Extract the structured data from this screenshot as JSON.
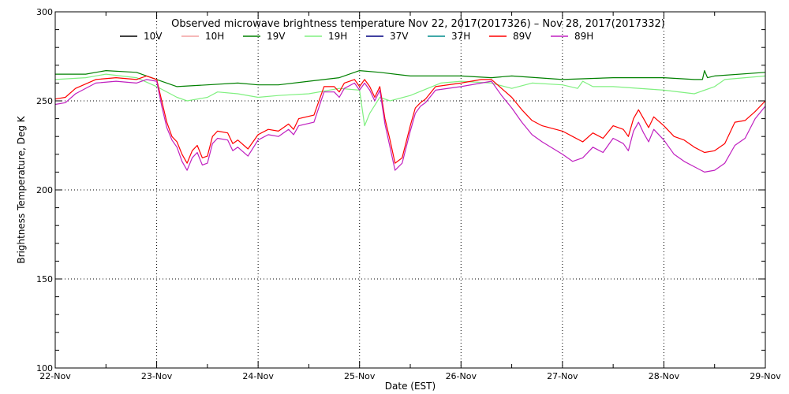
{
  "chart_data": {
    "type": "line",
    "title": "Observed microwave brightness temperature Nov 22, 2017(2017326) – Nov 28, 2017(2017332)",
    "xlabel": "Date (EST)",
    "ylabel": "Brightness Temperature, Deg K",
    "xlim": [
      "22-Nov",
      "29-Nov"
    ],
    "ylim": [
      100,
      300
    ],
    "yticks": [
      100,
      150,
      200,
      250,
      300
    ],
    "xticks": [
      "22-Nov",
      "23-Nov",
      "24-Nov",
      "25-Nov",
      "26-Nov",
      "27-Nov",
      "28-Nov",
      "29-Nov"
    ],
    "grid": true,
    "legend": {
      "placement": "top",
      "entries": [
        "10V",
        "10H",
        "19V",
        "19H",
        "37V",
        "37H",
        "89V",
        "89H"
      ]
    },
    "x_unit": "days after 22-Nov 00:00 EST",
    "series": [
      {
        "name": "10V",
        "color": "#000000",
        "points": []
      },
      {
        "name": "10H",
        "color": "#f4a0a0",
        "points": []
      },
      {
        "name": "19V",
        "color": "#008000",
        "points": [
          [
            0,
            265
          ],
          [
            0.3,
            265
          ],
          [
            0.5,
            267
          ],
          [
            0.8,
            266
          ],
          [
            1.0,
            262
          ],
          [
            1.2,
            258
          ],
          [
            1.5,
            259
          ],
          [
            1.8,
            260
          ],
          [
            2.0,
            259
          ],
          [
            2.2,
            259
          ],
          [
            2.5,
            261
          ],
          [
            2.8,
            263
          ],
          [
            3.0,
            267
          ],
          [
            3.2,
            266
          ],
          [
            3.5,
            264
          ],
          [
            3.8,
            264
          ],
          [
            4.0,
            264
          ],
          [
            4.3,
            263
          ],
          [
            4.5,
            264
          ],
          [
            5.0,
            262
          ],
          [
            5.5,
            263
          ],
          [
            6.0,
            263
          ],
          [
            6.3,
            262
          ],
          [
            6.38,
            262
          ],
          [
            6.4,
            267
          ],
          [
            6.43,
            263
          ],
          [
            6.5,
            264
          ],
          [
            7.0,
            266
          ]
        ]
      },
      {
        "name": "19H",
        "color": "#80f080",
        "points": [
          [
            0,
            262
          ],
          [
            0.3,
            263
          ],
          [
            0.5,
            265
          ],
          [
            0.8,
            263
          ],
          [
            1.0,
            258
          ],
          [
            1.2,
            252
          ],
          [
            1.3,
            250
          ],
          [
            1.5,
            252
          ],
          [
            1.6,
            255
          ],
          [
            1.8,
            254
          ],
          [
            2.0,
            252
          ],
          [
            2.2,
            253
          ],
          [
            2.5,
            254
          ],
          [
            2.8,
            257
          ],
          [
            3.0,
            256
          ],
          [
            3.05,
            236
          ],
          [
            3.1,
            243
          ],
          [
            3.2,
            252
          ],
          [
            3.3,
            250
          ],
          [
            3.5,
            253
          ],
          [
            3.8,
            260
          ],
          [
            4.0,
            261
          ],
          [
            4.3,
            260
          ],
          [
            4.5,
            257
          ],
          [
            4.7,
            260
          ],
          [
            5.0,
            259
          ],
          [
            5.15,
            257
          ],
          [
            5.2,
            261
          ],
          [
            5.3,
            258
          ],
          [
            5.5,
            258
          ],
          [
            6.0,
            256
          ],
          [
            6.3,
            254
          ],
          [
            6.5,
            258
          ],
          [
            6.6,
            262
          ],
          [
            7.0,
            264
          ]
        ]
      },
      {
        "name": "37V",
        "color": "#000080",
        "points": []
      },
      {
        "name": "37H",
        "color": "#008b8b",
        "points": []
      },
      {
        "name": "89V",
        "color": "#ff0000",
        "points": [
          [
            0,
            251
          ],
          [
            0.1,
            252
          ],
          [
            0.2,
            257
          ],
          [
            0.4,
            262
          ],
          [
            0.6,
            263
          ],
          [
            0.8,
            262
          ],
          [
            0.9,
            264
          ],
          [
            1.0,
            262
          ],
          [
            1.05,
            250
          ],
          [
            1.1,
            238
          ],
          [
            1.15,
            230
          ],
          [
            1.2,
            227
          ],
          [
            1.25,
            220
          ],
          [
            1.3,
            215
          ],
          [
            1.35,
            222
          ],
          [
            1.4,
            225
          ],
          [
            1.45,
            218
          ],
          [
            1.5,
            219
          ],
          [
            1.55,
            230
          ],
          [
            1.6,
            233
          ],
          [
            1.7,
            232
          ],
          [
            1.75,
            226
          ],
          [
            1.8,
            228
          ],
          [
            1.9,
            223
          ],
          [
            2.0,
            231
          ],
          [
            2.1,
            234
          ],
          [
            2.2,
            233
          ],
          [
            2.3,
            237
          ],
          [
            2.35,
            234
          ],
          [
            2.4,
            240
          ],
          [
            2.55,
            242
          ],
          [
            2.65,
            258
          ],
          [
            2.75,
            258
          ],
          [
            2.8,
            255
          ],
          [
            2.85,
            260
          ],
          [
            2.95,
            262
          ],
          [
            3.0,
            258
          ],
          [
            3.05,
            262
          ],
          [
            3.1,
            258
          ],
          [
            3.15,
            252
          ],
          [
            3.2,
            258
          ],
          [
            3.25,
            240
          ],
          [
            3.3,
            228
          ],
          [
            3.35,
            215
          ],
          [
            3.42,
            218
          ],
          [
            3.5,
            236
          ],
          [
            3.55,
            246
          ],
          [
            3.6,
            249
          ],
          [
            3.65,
            251
          ],
          [
            3.75,
            258
          ],
          [
            4.0,
            260
          ],
          [
            4.2,
            262
          ],
          [
            4.3,
            262
          ],
          [
            4.4,
            257
          ],
          [
            4.5,
            252
          ],
          [
            4.6,
            245
          ],
          [
            4.7,
            239
          ],
          [
            4.8,
            236
          ],
          [
            5.0,
            233
          ],
          [
            5.1,
            230
          ],
          [
            5.2,
            227
          ],
          [
            5.3,
            232
          ],
          [
            5.4,
            229
          ],
          [
            5.5,
            236
          ],
          [
            5.6,
            234
          ],
          [
            5.65,
            230
          ],
          [
            5.7,
            240
          ],
          [
            5.75,
            245
          ],
          [
            5.8,
            240
          ],
          [
            5.85,
            235
          ],
          [
            5.9,
            241
          ],
          [
            6.0,
            236
          ],
          [
            6.1,
            230
          ],
          [
            6.2,
            228
          ],
          [
            6.3,
            224
          ],
          [
            6.4,
            221
          ],
          [
            6.5,
            222
          ],
          [
            6.6,
            226
          ],
          [
            6.7,
            238
          ],
          [
            6.8,
            239
          ],
          [
            6.9,
            244
          ],
          [
            7.0,
            250
          ]
        ]
      },
      {
        "name": "89H",
        "color": "#c020c0",
        "points": [
          [
            0,
            248
          ],
          [
            0.1,
            249
          ],
          [
            0.2,
            254
          ],
          [
            0.4,
            260
          ],
          [
            0.6,
            261
          ],
          [
            0.8,
            260
          ],
          [
            0.9,
            262
          ],
          [
            1.0,
            261
          ],
          [
            1.05,
            247
          ],
          [
            1.1,
            235
          ],
          [
            1.15,
            228
          ],
          [
            1.2,
            224
          ],
          [
            1.25,
            216
          ],
          [
            1.3,
            211
          ],
          [
            1.35,
            218
          ],
          [
            1.4,
            221
          ],
          [
            1.45,
            214
          ],
          [
            1.5,
            215
          ],
          [
            1.55,
            226
          ],
          [
            1.6,
            229
          ],
          [
            1.7,
            228
          ],
          [
            1.75,
            222
          ],
          [
            1.8,
            224
          ],
          [
            1.9,
            219
          ],
          [
            2.0,
            228
          ],
          [
            2.1,
            231
          ],
          [
            2.2,
            230
          ],
          [
            2.3,
            234
          ],
          [
            2.35,
            231
          ],
          [
            2.4,
            236
          ],
          [
            2.55,
            238
          ],
          [
            2.65,
            255
          ],
          [
            2.75,
            255
          ],
          [
            2.8,
            252
          ],
          [
            2.85,
            257
          ],
          [
            2.95,
            260
          ],
          [
            3.0,
            256
          ],
          [
            3.05,
            260
          ],
          [
            3.1,
            256
          ],
          [
            3.15,
            250
          ],
          [
            3.2,
            256
          ],
          [
            3.25,
            237
          ],
          [
            3.3,
            224
          ],
          [
            3.35,
            211
          ],
          [
            3.42,
            215
          ],
          [
            3.5,
            233
          ],
          [
            3.55,
            243
          ],
          [
            3.6,
            247
          ],
          [
            3.65,
            249
          ],
          [
            3.75,
            256
          ],
          [
            4.0,
            258
          ],
          [
            4.2,
            260
          ],
          [
            4.3,
            261
          ],
          [
            4.4,
            253
          ],
          [
            4.5,
            246
          ],
          [
            4.6,
            238
          ],
          [
            4.7,
            231
          ],
          [
            4.8,
            227
          ],
          [
            5.0,
            220
          ],
          [
            5.1,
            216
          ],
          [
            5.2,
            218
          ],
          [
            5.3,
            224
          ],
          [
            5.4,
            221
          ],
          [
            5.5,
            229
          ],
          [
            5.6,
            226
          ],
          [
            5.65,
            222
          ],
          [
            5.7,
            233
          ],
          [
            5.75,
            238
          ],
          [
            5.8,
            232
          ],
          [
            5.85,
            227
          ],
          [
            5.9,
            234
          ],
          [
            6.0,
            228
          ],
          [
            6.1,
            220
          ],
          [
            6.2,
            216
          ],
          [
            6.3,
            213
          ],
          [
            6.4,
            210
          ],
          [
            6.5,
            211
          ],
          [
            6.6,
            215
          ],
          [
            6.7,
            225
          ],
          [
            6.8,
            229
          ],
          [
            6.9,
            240
          ],
          [
            7.0,
            247
          ]
        ]
      }
    ]
  }
}
